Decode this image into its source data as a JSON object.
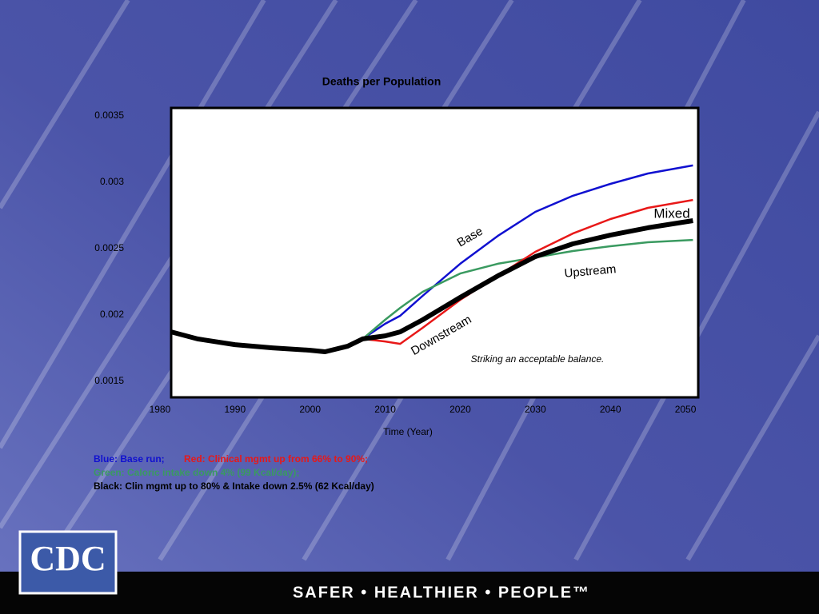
{
  "chart_data": {
    "type": "line",
    "title": "Deaths per Population",
    "x_label": "Time (Year)",
    "x": [
      1981.5,
      1985,
      1990,
      1995,
      2000,
      2002,
      2005,
      2007,
      2010,
      2012,
      2015,
      2020,
      2025,
      2030,
      2035,
      2040,
      2045,
      2051
    ],
    "series": [
      {
        "name": "Blue: Base run;",
        "color": "#1010d0",
        "values": [
          null,
          null,
          null,
          null,
          null,
          null,
          null,
          0.00182,
          0.001934,
          0.001994,
          0.002145,
          0.002386,
          0.002596,
          0.002777,
          0.002898,
          0.002988,
          0.003066,
          0.003127
        ]
      },
      {
        "name": "Green: Caloric intake down 4% (99 Kcal/day);",
        "color": "#3a9a60",
        "values": [
          null,
          null,
          null,
          null,
          null,
          null,
          null,
          0.00182,
          0.001964,
          0.002054,
          0.002175,
          0.002313,
          0.002386,
          0.002434,
          0.002482,
          0.002518,
          0.002548,
          0.002566
        ]
      },
      {
        "name": "Red: Clinical mgmt up from 66% to 90%;",
        "color": "#e81818",
        "values": [
          null,
          null,
          null,
          null,
          null,
          null,
          null,
          0.00182,
          0.001801,
          0.001783,
          0.001904,
          0.002114,
          0.002295,
          0.002476,
          0.002614,
          0.002723,
          0.002807,
          0.002867
        ]
      },
      {
        "name": "Black: Clin mgmt up to 80% & Intake down 2.5% (62 Kcal/day)",
        "color": "#000000",
        "values": [
          0.001873,
          0.00182,
          0.001777,
          0.001753,
          0.001735,
          0.001723,
          0.001765,
          0.00182,
          0.001843,
          0.001873,
          0.001964,
          0.002133,
          0.002295,
          0.00244,
          0.002536,
          0.002602,
          0.002657,
          0.002711
        ]
      }
    ],
    "annotations": [
      "Base",
      "Mixed",
      "Upstream",
      "Downstream",
      "Striking an acceptable balance."
    ],
    "xlim": [
      1981.5,
      2051.7
    ],
    "xticks": [
      1980,
      1990,
      2000,
      2010,
      2020,
      2030,
      2040,
      2050
    ],
    "ylim": [
      0.00138,
      0.00356
    ],
    "yticks": [
      0.0035,
      0.003,
      0.0025,
      0.002,
      0.0015
    ],
    "grid": false
  },
  "slide": {
    "logo": "CDC",
    "slogan": "SAFER • HEALTHIER • PEOPLE™"
  }
}
